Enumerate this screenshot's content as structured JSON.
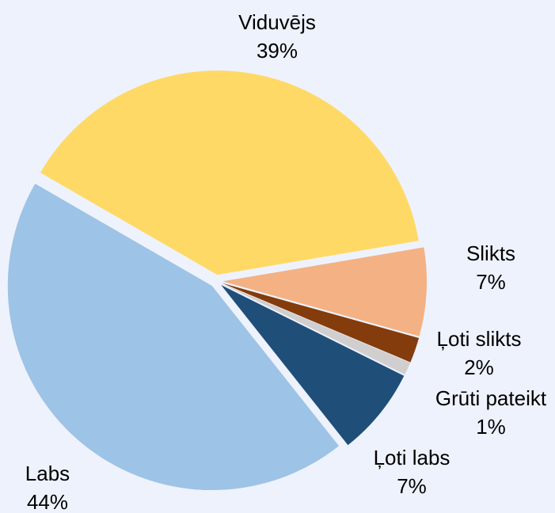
{
  "chart_data": {
    "type": "pie",
    "categories": [
      "Viduvējs",
      "Slikts",
      "Ļoti slikts",
      "Grūti pateikt",
      "Ļoti labs",
      "Labs"
    ],
    "values": [
      39,
      7,
      2,
      1,
      7,
      44
    ],
    "value_labels": [
      "39%",
      "7%",
      "2%",
      "1%",
      "7%",
      "44%"
    ],
    "colors": [
      "#ffd966",
      "#f4b183",
      "#843c0c",
      "#d0cece",
      "#1f4e79",
      "#9dc3e6"
    ]
  }
}
